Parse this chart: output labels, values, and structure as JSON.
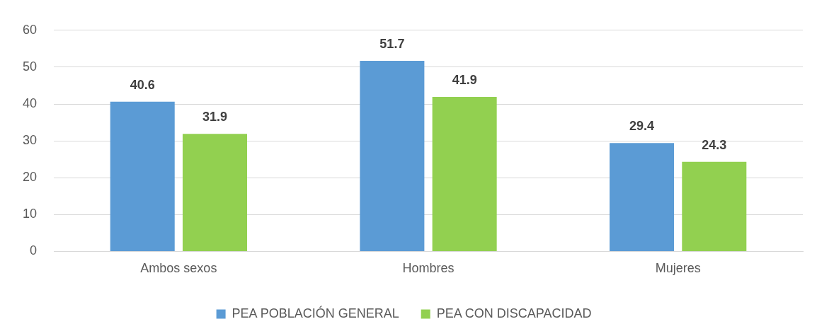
{
  "chart_data": {
    "type": "bar",
    "categories": [
      "Ambos sexos",
      "Hombres",
      "Mujeres"
    ],
    "series": [
      {
        "name": "PEA POBLACIÓN GENERAL",
        "color": "#5b9bd5",
        "values": [
          40.6,
          51.7,
          29.4
        ]
      },
      {
        "name": "PEA CON DISCAPACIDAD",
        "color": "#92d050",
        "values": [
          31.9,
          41.9,
          24.3
        ]
      }
    ],
    "ylim": [
      0,
      60
    ],
    "yticks": [
      0,
      10,
      20,
      30,
      40,
      50,
      60
    ],
    "grid": "y",
    "legend": "bottom",
    "data_labels": true
  }
}
